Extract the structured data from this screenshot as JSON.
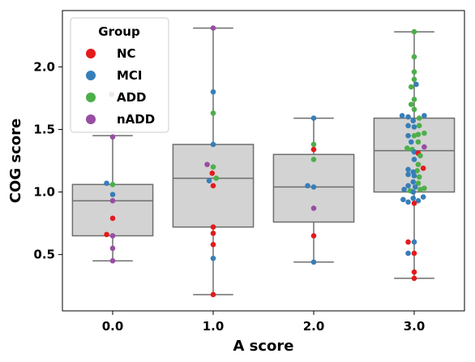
{
  "chart_data": {
    "type": "box+swarm",
    "xlabel": "A score",
    "ylabel": "COG score",
    "categories": [
      "0.0",
      "1.0",
      "2.0",
      "3.0"
    ],
    "ylim": [
      0.05,
      2.45
    ],
    "yticks": [
      "0.5",
      "1.0",
      "1.5",
      "2.0"
    ],
    "grid": false,
    "legend": {
      "title": "Group",
      "position": "top-left",
      "entries": [
        {
          "label": "NC",
          "color": "#e41a1c"
        },
        {
          "label": "MCI",
          "color": "#377eb8"
        },
        {
          "label": "ADD",
          "color": "#4daf4a"
        },
        {
          "label": "nADD",
          "color": "#984ea3"
        }
      ]
    },
    "box_color": "#d3d3d3",
    "line_color": "#6e6e6e",
    "boxes": [
      {
        "category": "0.0",
        "whisker_low": 0.45,
        "q1": 0.65,
        "median": 0.93,
        "q3": 1.06,
        "whisker_high": 1.45
      },
      {
        "category": "1.0",
        "whisker_low": 0.18,
        "q1": 0.72,
        "median": 1.11,
        "q3": 1.38,
        "whisker_high": 2.31
      },
      {
        "category": "2.0",
        "whisker_low": 0.44,
        "q1": 0.76,
        "median": 1.04,
        "q3": 1.3,
        "whisker_high": 1.59
      },
      {
        "category": "3.0",
        "whisker_low": 0.31,
        "q1": 1.0,
        "median": 1.33,
        "q3": 1.59,
        "whisker_high": 2.28
      }
    ],
    "points": [
      {
        "category": "0.0",
        "group": "nADD",
        "y": 1.78,
        "offset": -0.01
      },
      {
        "category": "0.0",
        "group": "nADD",
        "y": 1.44,
        "offset": 0.0
      },
      {
        "category": "0.0",
        "group": "MCI",
        "y": 1.07,
        "offset": -0.06
      },
      {
        "category": "0.0",
        "group": "ADD",
        "y": 1.06,
        "offset": 0.0
      },
      {
        "category": "0.0",
        "group": "MCI",
        "y": 0.98,
        "offset": 0.0
      },
      {
        "category": "0.0",
        "group": "nADD",
        "y": 0.93,
        "offset": 0.0
      },
      {
        "category": "0.0",
        "group": "NC",
        "y": 0.79,
        "offset": 0.0
      },
      {
        "category": "0.0",
        "group": "NC",
        "y": 0.66,
        "offset": -0.06
      },
      {
        "category": "0.0",
        "group": "nADD",
        "y": 0.65,
        "offset": 0.0
      },
      {
        "category": "0.0",
        "group": "nADD",
        "y": 0.55,
        "offset": 0.0
      },
      {
        "category": "0.0",
        "group": "nADD",
        "y": 0.45,
        "offset": 0.0
      },
      {
        "category": "1.0",
        "group": "nADD",
        "y": 2.31,
        "offset": 0.0
      },
      {
        "category": "1.0",
        "group": "MCI",
        "y": 1.8,
        "offset": 0.0
      },
      {
        "category": "1.0",
        "group": "ADD",
        "y": 1.63,
        "offset": 0.0
      },
      {
        "category": "1.0",
        "group": "MCI",
        "y": 1.38,
        "offset": 0.0
      },
      {
        "category": "1.0",
        "group": "nADD",
        "y": 1.22,
        "offset": -0.06
      },
      {
        "category": "1.0",
        "group": "ADD",
        "y": 1.2,
        "offset": 0.0
      },
      {
        "category": "1.0",
        "group": "NC",
        "y": 1.15,
        "offset": -0.01
      },
      {
        "category": "1.0",
        "group": "ADD",
        "y": 1.11,
        "offset": 0.03
      },
      {
        "category": "1.0",
        "group": "MCI",
        "y": 1.09,
        "offset": -0.04
      },
      {
        "category": "1.0",
        "group": "NC",
        "y": 1.05,
        "offset": 0.0
      },
      {
        "category": "1.0",
        "group": "NC",
        "y": 0.72,
        "offset": 0.0
      },
      {
        "category": "1.0",
        "group": "NC",
        "y": 0.67,
        "offset": 0.0
      },
      {
        "category": "1.0",
        "group": "NC",
        "y": 0.58,
        "offset": 0.0
      },
      {
        "category": "1.0",
        "group": "MCI",
        "y": 0.47,
        "offset": 0.0
      },
      {
        "category": "1.0",
        "group": "NC",
        "y": 0.18,
        "offset": 0.0
      },
      {
        "category": "2.0",
        "group": "MCI",
        "y": 1.59,
        "offset": 0.0
      },
      {
        "category": "2.0",
        "group": "ADD",
        "y": 1.38,
        "offset": 0.0
      },
      {
        "category": "2.0",
        "group": "NC",
        "y": 1.34,
        "offset": 0.0
      },
      {
        "category": "2.0",
        "group": "ADD",
        "y": 1.26,
        "offset": 0.0
      },
      {
        "category": "2.0",
        "group": "MCI",
        "y": 1.05,
        "offset": -0.06
      },
      {
        "category": "2.0",
        "group": "MCI",
        "y": 1.04,
        "offset": 0.0
      },
      {
        "category": "2.0",
        "group": "nADD",
        "y": 0.87,
        "offset": 0.0
      },
      {
        "category": "2.0",
        "group": "NC",
        "y": 0.65,
        "offset": 0.0
      },
      {
        "category": "2.0",
        "group": "MCI",
        "y": 0.44,
        "offset": 0.0
      },
      {
        "category": "3.0",
        "group": "ADD",
        "y": 2.28,
        "offset": 0.0
      },
      {
        "category": "3.0",
        "group": "ADD",
        "y": 2.08,
        "offset": 0.0
      },
      {
        "category": "3.0",
        "group": "ADD",
        "y": 1.96,
        "offset": 0.0
      },
      {
        "category": "3.0",
        "group": "ADD",
        "y": 1.9,
        "offset": 0.0
      },
      {
        "category": "3.0",
        "group": "MCI",
        "y": 1.86,
        "offset": 0.02
      },
      {
        "category": "3.0",
        "group": "ADD",
        "y": 1.84,
        "offset": -0.03
      },
      {
        "category": "3.0",
        "group": "ADD",
        "y": 1.74,
        "offset": 0.0
      },
      {
        "category": "3.0",
        "group": "ADD",
        "y": 1.7,
        "offset": -0.03
      },
      {
        "category": "3.0",
        "group": "ADD",
        "y": 1.66,
        "offset": 0.0
      },
      {
        "category": "3.0",
        "group": "MCI",
        "y": 1.61,
        "offset": -0.12
      },
      {
        "category": "3.0",
        "group": "MCI",
        "y": 1.61,
        "offset": 0.1
      },
      {
        "category": "3.0",
        "group": "MCI",
        "y": 1.6,
        "offset": -0.06
      },
      {
        "category": "3.0",
        "group": "ADD",
        "y": 1.59,
        "offset": 0.05
      },
      {
        "category": "3.0",
        "group": "MCI",
        "y": 1.57,
        "offset": -0.01
      },
      {
        "category": "3.0",
        "group": "MCI",
        "y": 1.53,
        "offset": -0.06
      },
      {
        "category": "3.0",
        "group": "MCI",
        "y": 1.52,
        "offset": 0.0
      },
      {
        "category": "3.0",
        "group": "ADD",
        "y": 1.53,
        "offset": 0.05
      },
      {
        "category": "3.0",
        "group": "ADD",
        "y": 1.47,
        "offset": 0.1
      },
      {
        "category": "3.0",
        "group": "ADD",
        "y": 1.46,
        "offset": 0.04
      },
      {
        "category": "3.0",
        "group": "MCI",
        "y": 1.45,
        "offset": -0.06
      },
      {
        "category": "3.0",
        "group": "ADD",
        "y": 1.45,
        "offset": 0.0
      },
      {
        "category": "3.0",
        "group": "MCI",
        "y": 1.4,
        "offset": -0.03
      },
      {
        "category": "3.0",
        "group": "ADD",
        "y": 1.4,
        "offset": 0.04
      },
      {
        "category": "3.0",
        "group": "nADD",
        "y": 1.36,
        "offset": 0.1
      },
      {
        "category": "3.0",
        "group": "ADD",
        "y": 1.35,
        "offset": -0.07
      },
      {
        "category": "3.0",
        "group": "ADD",
        "y": 1.34,
        "offset": -0.02
      },
      {
        "category": "3.0",
        "group": "MCI",
        "y": 1.32,
        "offset": 0.0
      },
      {
        "category": "3.0",
        "group": "NC",
        "y": 1.31,
        "offset": 0.04
      },
      {
        "category": "3.0",
        "group": "ADD",
        "y": 1.29,
        "offset": 0.06
      },
      {
        "category": "3.0",
        "group": "MCI",
        "y": 1.26,
        "offset": 0.0
      },
      {
        "category": "3.0",
        "group": "ADD",
        "y": 1.22,
        "offset": 0.04
      },
      {
        "category": "3.0",
        "group": "NC",
        "y": 1.19,
        "offset": 0.09
      },
      {
        "category": "3.0",
        "group": "MCI",
        "y": 1.18,
        "offset": -0.06
      },
      {
        "category": "3.0",
        "group": "ADD",
        "y": 1.17,
        "offset": 0.03
      },
      {
        "category": "3.0",
        "group": "MCI",
        "y": 1.16,
        "offset": -0.01
      },
      {
        "category": "3.0",
        "group": "MCI",
        "y": 1.14,
        "offset": -0.06
      },
      {
        "category": "3.0",
        "group": "MCI",
        "y": 1.13,
        "offset": 0.0
      },
      {
        "category": "3.0",
        "group": "ADD",
        "y": 1.12,
        "offset": 0.05
      },
      {
        "category": "3.0",
        "group": "MCI",
        "y": 1.08,
        "offset": -0.01
      },
      {
        "category": "3.0",
        "group": "ADD",
        "y": 1.07,
        "offset": 0.04
      },
      {
        "category": "3.0",
        "group": "MCI",
        "y": 1.05,
        "offset": -0.06
      },
      {
        "category": "3.0",
        "group": "MCI",
        "y": 1.04,
        "offset": 0.01
      },
      {
        "category": "3.0",
        "group": "ADD",
        "y": 1.03,
        "offset": 0.1
      },
      {
        "category": "3.0",
        "group": "MCI",
        "y": 1.02,
        "offset": -0.1
      },
      {
        "category": "3.0",
        "group": "ADD",
        "y": 1.02,
        "offset": 0.06
      },
      {
        "category": "3.0",
        "group": "ADD",
        "y": 1.01,
        "offset": -0.04
      },
      {
        "category": "3.0",
        "group": "MCI",
        "y": 1.0,
        "offset": -0.01
      },
      {
        "category": "3.0",
        "group": "MCI",
        "y": 0.96,
        "offset": 0.09
      },
      {
        "category": "3.0",
        "group": "MCI",
        "y": 0.95,
        "offset": -0.01
      },
      {
        "category": "3.0",
        "group": "MCI",
        "y": 0.94,
        "offset": -0.11
      },
      {
        "category": "3.0",
        "group": "MCI",
        "y": 0.93,
        "offset": 0.04
      },
      {
        "category": "3.0",
        "group": "MCI",
        "y": 0.92,
        "offset": -0.06
      },
      {
        "category": "3.0",
        "group": "NC",
        "y": 0.91,
        "offset": 0.0
      },
      {
        "category": "3.0",
        "group": "NC",
        "y": 0.6,
        "offset": -0.06
      },
      {
        "category": "3.0",
        "group": "MCI",
        "y": 0.6,
        "offset": 0.0
      },
      {
        "category": "3.0",
        "group": "MCI",
        "y": 0.51,
        "offset": -0.06
      },
      {
        "category": "3.0",
        "group": "NC",
        "y": 0.51,
        "offset": 0.0
      },
      {
        "category": "3.0",
        "group": "NC",
        "y": 0.36,
        "offset": 0.0
      },
      {
        "category": "3.0",
        "group": "NC",
        "y": 0.31,
        "offset": 0.0
      }
    ]
  }
}
